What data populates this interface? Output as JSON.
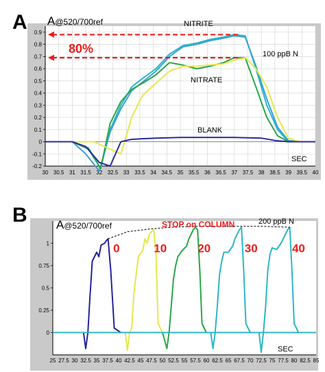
{
  "figure_labels": {
    "panel_a": "A",
    "panel_b": "B"
  },
  "chart_data": [
    {
      "type": "line",
      "panel": "A",
      "title": "A@520/700ref",
      "title_main": "A",
      "title_suffix": "@520/700ref",
      "xlabel": "SEC",
      "annotations": {
        "conc": "100 ppB N",
        "pct": "80%",
        "nitrite": "NITRITE",
        "nitrate": "NITRATE",
        "blank": "BLANK"
      },
      "xlim": [
        30,
        40
      ],
      "ylim": [
        -0.2,
        0.95
      ],
      "xticks": [
        "30",
        "30.5",
        "31",
        "31.5",
        "32",
        "32.5",
        "33",
        "33.5",
        "34",
        "34.5",
        "35",
        "35.5",
        "36",
        "36.5",
        "37",
        "37.5",
        "38",
        "38.5",
        "39",
        "39.5",
        "40"
      ],
      "yticks": [
        "0.9",
        "0.8",
        "0.7",
        "0.6",
        "0.5",
        "0.4",
        "0.3",
        "0.2",
        "0.1",
        "0",
        "-0.1",
        "-0.2"
      ],
      "ytick_values": [
        0.9,
        0.8,
        0.7,
        0.6,
        0.5,
        0.4,
        0.3,
        0.2,
        0.1,
        0,
        -0.1,
        -0.2
      ],
      "guides": [
        0.88,
        0.69
      ],
      "colors": {
        "nitrite_1": "#2bb6c8",
        "nitrite_2": "#3aa0d8",
        "nitrate_1": "#2aa54a",
        "nitrate_2": "#e5e84a",
        "blank": "#2a2a9a",
        "guide": "#ee1c1c"
      },
      "series": [
        {
          "key": "nitrite_1",
          "x": [
            30,
            31,
            31.6,
            32.05,
            32.4,
            32.8,
            33.2,
            33.6,
            34.1,
            34.6,
            35.1,
            35.6,
            36.1,
            36.6,
            37.0,
            37.4,
            37.8,
            38.2,
            38.6,
            39.0,
            39.4,
            40
          ],
          "y": [
            0,
            0,
            -0.05,
            -0.22,
            0.1,
            0.3,
            0.45,
            0.52,
            0.6,
            0.72,
            0.79,
            0.81,
            0.84,
            0.86,
            0.88,
            0.87,
            0.6,
            0.3,
            0.1,
            0,
            0,
            0
          ]
        },
        {
          "key": "nitrite_2",
          "x": [
            30,
            31,
            31.5,
            32.0,
            32.4,
            32.8,
            33.2,
            33.6,
            34.1,
            34.6,
            35.1,
            35.6,
            36.1,
            36.6,
            37.0,
            37.4,
            37.8,
            38.2,
            38.6,
            39.0,
            39.4,
            40
          ],
          "y": [
            0,
            0,
            -0.1,
            -0.24,
            0.08,
            0.27,
            0.42,
            0.49,
            0.58,
            0.7,
            0.78,
            0.8,
            0.83,
            0.85,
            0.87,
            0.86,
            0.62,
            0.35,
            0.12,
            0.01,
            0,
            0
          ]
        },
        {
          "key": "nitrate_1",
          "x": [
            30,
            31,
            31.6,
            32.05,
            32.4,
            32.8,
            33.2,
            33.6,
            34.1,
            34.6,
            35.1,
            35.6,
            36.1,
            36.6,
            37.0,
            37.4,
            37.8,
            38.2,
            38.6,
            39.0,
            39.4,
            40
          ],
          "y": [
            0,
            0,
            -0.06,
            -0.22,
            0.15,
            0.33,
            0.43,
            0.48,
            0.55,
            0.65,
            0.63,
            0.6,
            0.62,
            0.65,
            0.69,
            0.69,
            0.45,
            0.2,
            0.05,
            0,
            0,
            0
          ]
        },
        {
          "key": "nitrate_2",
          "x": [
            30,
            31,
            31.8,
            32.3,
            32.8,
            33.2,
            33.6,
            34.1,
            34.6,
            35.1,
            35.6,
            36.1,
            36.6,
            37.0,
            37.4,
            37.8,
            38.2,
            38.6,
            39.0,
            39.4,
            40
          ],
          "y": [
            0,
            0,
            0,
            -0.05,
            -0.1,
            0.2,
            0.38,
            0.48,
            0.58,
            0.62,
            0.62,
            0.63,
            0.64,
            0.67,
            0.69,
            0.6,
            0.45,
            0.2,
            0.03,
            0,
            0
          ]
        },
        {
          "key": "blank",
          "x": [
            30,
            31,
            31.5,
            32.0,
            32.4,
            32.8,
            33.2,
            33.6,
            34.1,
            35,
            36,
            37,
            38,
            38.5,
            39,
            39.5,
            40
          ],
          "y": [
            0,
            0,
            -0.04,
            -0.17,
            -0.2,
            0,
            0.02,
            0.025,
            0.03,
            0.035,
            0.035,
            0.035,
            0.03,
            0.01,
            0,
            0,
            0
          ]
        }
      ]
    },
    {
      "type": "line",
      "panel": "B",
      "title": "A@520/700ref",
      "title_main": "A",
      "title_suffix": "@520/700ref",
      "xlabel": "SEC",
      "annotations": {
        "stop": "STOP on COLUMN",
        "conc": "200 ppB N"
      },
      "peak_labels": [
        "0",
        "10",
        "20",
        "30",
        "40"
      ],
      "xlim": [
        25,
        85
      ],
      "ylim": [
        -0.25,
        1.25
      ],
      "xticks": [
        "25",
        "27.5",
        "30",
        "32.5",
        "35",
        "37.5",
        "40",
        "42.5",
        "45",
        "47.5",
        "50",
        "52.5",
        "55",
        "57.5",
        "60",
        "62.5",
        "65",
        "67.5",
        "70",
        "72.5",
        "75",
        "77.5",
        "80",
        "82.5",
        "85"
      ],
      "yticks": [
        "1",
        "0.75",
        "0.5",
        "0.25",
        "0"
      ],
      "ytick_values": [
        1,
        0.75,
        0.5,
        0.25,
        0
      ],
      "colors": {
        "s0": "#23239b",
        "s10": "#e4e84a",
        "s20": "#2aa54a",
        "s30": "#2bb6c8",
        "s40": "#2bb6c8",
        "dash": "#000000"
      },
      "series": [
        {
          "key": "s0",
          "x": [
            25,
            32,
            32.5,
            33,
            33.4,
            34,
            35,
            35.5,
            36,
            36.8,
            37.2,
            37.6,
            38.2,
            39,
            40.5,
            42
          ],
          "y": [
            0,
            0,
            -0.18,
            0,
            0.35,
            0.8,
            0.9,
            0.85,
            0.98,
            1.0,
            1.03,
            1.05,
            0.7,
            0.05,
            0,
            0
          ]
        },
        {
          "key": "s10",
          "x": [
            25,
            41.5,
            42,
            42.5,
            43,
            43.5,
            44.5,
            45.5,
            46,
            46.5,
            47,
            47.5,
            48,
            48.5,
            49,
            50,
            85
          ],
          "y": [
            0,
            0,
            -0.2,
            0,
            0.05,
            0.45,
            0.85,
            0.92,
            1.05,
            1.0,
            1.1,
            1.13,
            1.15,
            0.9,
            0.1,
            0,
            0
          ]
        },
        {
          "key": "s20",
          "x": [
            25,
            50,
            51,
            51.5,
            52,
            52.5,
            53,
            53.5,
            54.5,
            55.5,
            56,
            56.5,
            57,
            57.5,
            58,
            58.5,
            59,
            60,
            85
          ],
          "y": [
            0,
            0,
            -0.18,
            0,
            0.3,
            0.6,
            0.75,
            0.85,
            0.92,
            0.97,
            1.05,
            1.1,
            1.15,
            1.18,
            1.15,
            0.7,
            0.1,
            0,
            0
          ]
        },
        {
          "key": "s30",
          "x": [
            25,
            61,
            61.5,
            62,
            62.5,
            63,
            63.5,
            64,
            65,
            66,
            66.5,
            67,
            67.5,
            68,
            68.5,
            69,
            70,
            85
          ],
          "y": [
            0,
            0,
            -0.18,
            0,
            0.3,
            0.65,
            0.8,
            0.9,
            0.9,
            0.97,
            1.05,
            1.1,
            1.15,
            1.18,
            0.7,
            0.1,
            0,
            0
          ]
        },
        {
          "key": "s40",
          "x": [
            25,
            72,
            72.5,
            73,
            73.5,
            74,
            74.5,
            75,
            76,
            77,
            77.5,
            78,
            78.5,
            79,
            79.5,
            80,
            81,
            85
          ],
          "y": [
            0,
            0,
            -0.22,
            0,
            0.3,
            0.7,
            0.88,
            0.95,
            0.93,
            1.0,
            1.05,
            1.1,
            1.15,
            1.18,
            0.7,
            0.1,
            0,
            0
          ]
        }
      ]
    }
  ]
}
